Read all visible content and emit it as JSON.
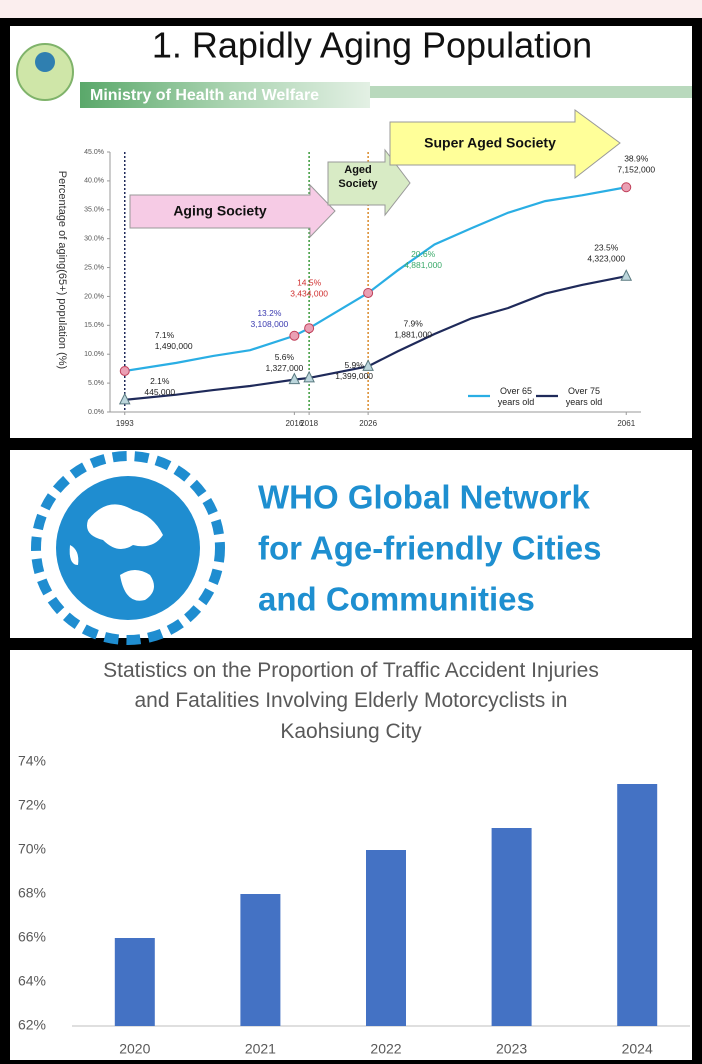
{
  "chart_data": [
    {
      "type": "line",
      "title": "1. Rapidly Aging Population",
      "subtitle": "Ministry of Health and Welfare",
      "y_label": "Percentage of aging(65+) population (%)",
      "x": [
        1993,
        2000,
        2005,
        2010,
        2016,
        2018,
        2026,
        2030,
        2035,
        2040,
        2045,
        2050,
        2055,
        2061
      ],
      "xlim": [
        1991,
        2063
      ],
      "xticks": [
        1993,
        2016,
        2018,
        2026,
        2061
      ],
      "ylim": [
        0,
        45
      ],
      "yticks": [
        {
          "value": 0,
          "label": "0.0%"
        },
        {
          "value": 5,
          "label": "5.0%"
        },
        {
          "value": 10,
          "label": "10.0%"
        },
        {
          "value": 15,
          "label": "15.0%"
        },
        {
          "value": 20,
          "label": "20.0%"
        },
        {
          "value": 25,
          "label": "25.0%"
        },
        {
          "value": 30,
          "label": "30.0%"
        },
        {
          "value": 35,
          "label": "35.0%"
        },
        {
          "value": 40,
          "label": "40.0%"
        },
        {
          "value": 45,
          "label": "45.0%"
        }
      ],
      "series": [
        {
          "name": "Over 65 years old",
          "color": "#2aaee4",
          "marker": "circle",
          "values": [
            7.1,
            8.5,
            9.7,
            10.7,
            13.2,
            14.5,
            20.6,
            24.5,
            29,
            31.8,
            34.5,
            36.5,
            37.5,
            38.9
          ],
          "value_labels": [
            "7.1%",
            null,
            null,
            null,
            "13.2%",
            "14.5%",
            "20.6%",
            null,
            null,
            null,
            null,
            null,
            null,
            "38.9%"
          ],
          "count_labels": [
            "1,490,000",
            null,
            null,
            null,
            "3,108,000",
            "3,434,000",
            "4,881,000",
            null,
            null,
            null,
            null,
            null,
            null,
            "7,152,000"
          ]
        },
        {
          "name": "Over 75 years old",
          "color": "#1f2a5a",
          "marker": "triangle",
          "values": [
            2.1,
            3,
            3.8,
            4.5,
            5.6,
            5.9,
            7.9,
            10.5,
            13.5,
            16.2,
            18,
            20.5,
            22,
            23.5
          ],
          "value_labels": [
            "2.1%",
            null,
            null,
            null,
            "5.6%",
            "5.9%",
            "7.9%",
            null,
            null,
            null,
            null,
            null,
            null,
            "23.5%"
          ],
          "count_labels": [
            "445,000",
            null,
            null,
            null,
            "1,327,000",
            "1,399,000",
            "1,881,000",
            null,
            null,
            null,
            null,
            null,
            null,
            "4,323,000"
          ]
        }
      ],
      "phases": [
        {
          "label": "Aging Society",
          "start": 1993,
          "color": "#f6cbe5",
          "line_color": "#1f2a5a"
        },
        {
          "label": "Aged Society",
          "start": 2018,
          "color": "#d8ebc5",
          "line_color": "#3a9a3a"
        },
        {
          "label": "Super Aged Society",
          "start": 2026,
          "color": "#ffff99",
          "line_color": "#d98a2a"
        }
      ],
      "legend": "lower right"
    },
    {
      "type": "bar",
      "title": "Statistics on the Proportion of Traffic Accident Injuries and Fatalities Involving Elderly Motorcyclists in Kaohsiung City",
      "categories": [
        "2020",
        "2021",
        "2022",
        "2023",
        "2024"
      ],
      "values": [
        66,
        68,
        70,
        71,
        73
      ],
      "color": "#4472c4",
      "ylim": [
        62,
        74
      ],
      "yticks": [
        {
          "value": 62,
          "label": "62%"
        },
        {
          "value": 64,
          "label": "64%"
        },
        {
          "value": 66,
          "label": "66%"
        },
        {
          "value": 68,
          "label": "68%"
        },
        {
          "value": 70,
          "label": "70%"
        },
        {
          "value": 72,
          "label": "72%"
        },
        {
          "value": 74,
          "label": "74%"
        }
      ],
      "grid": false
    }
  ],
  "banner": {
    "title_lines": [
      "WHO Global Network",
      "for Age-friendly Cities",
      "and Communities"
    ]
  }
}
